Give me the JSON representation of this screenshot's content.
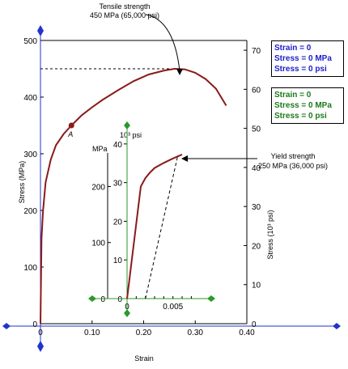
{
  "chart_data": [
    {
      "type": "line",
      "xlabel": "Strain",
      "ylabel": "Stress (MPa)",
      "ylabel_right": "Stress (10³ psi)",
      "xlim": [
        0,
        0.4
      ],
      "ylim": [
        0,
        500
      ],
      "ylim_right": [
        0,
        72.5
      ],
      "x_ticks": [
        "0",
        "0.10",
        "0.20",
        "0.30",
        "0.40"
      ],
      "y_ticks": [
        "0",
        "100",
        "200",
        "300",
        "400",
        "500"
      ],
      "y_ticks_right": [
        "0",
        "10",
        "20",
        "30",
        "40",
        "50",
        "60",
        "70"
      ],
      "series": [
        {
          "color": "#8b1a1a",
          "x": [
            0,
            0.002,
            0.005,
            0.01,
            0.02,
            0.03,
            0.045,
            0.06,
            0.08,
            0.1,
            0.12,
            0.15,
            0.18,
            0.21,
            0.24,
            0.26,
            0.28,
            0.3,
            0.32,
            0.34,
            0.36
          ],
          "y": [
            0,
            150,
            200,
            250,
            290,
            315,
            335,
            350,
            368,
            382,
            395,
            412,
            428,
            440,
            447,
            450,
            449,
            443,
            432,
            415,
            385
          ]
        }
      ],
      "annotations": {
        "point_label": "A",
        "point": [
          0.06,
          350
        ],
        "tensile_line1": "Tensile strength",
        "tensile_line2": "450 MPa (65,000 psi)",
        "tensile_value": 450
      }
    },
    {
      "type": "line",
      "xlim": [
        0,
        0.0082
      ],
      "ylim": [
        0,
        280
      ],
      "ylim_right": [
        0,
        40.6
      ],
      "y_ticks": [
        "0",
        "100",
        "200"
      ],
      "y_ticks_right": [
        "0",
        "10",
        "20",
        "30",
        "40"
      ],
      "x_ticks": [
        "0",
        "0.005"
      ],
      "y_unit_left": "MPa",
      "y_unit_right": "10³ psi",
      "series": [
        {
          "color": "#8b1a1a",
          "x": [
            0,
            0.0015,
            0.002,
            0.0025,
            0.003,
            0.004,
            0.005,
            0.006
          ],
          "y": [
            0,
            200,
            215,
            225,
            233,
            242,
            250,
            257
          ]
        }
      ],
      "offset_line": {
        "x": [
          0.002,
          0.0055
        ],
        "y": [
          0,
          253
        ]
      },
      "annotations": {
        "yield_line1": "Yield strength",
        "yield_line2": "250 MPa (36,000 psi)",
        "yield_value": 250
      }
    }
  ],
  "readouts": [
    {
      "strain": "Strain =  0",
      "stress_mpa": "Stress = 0 MPa",
      "stress_psi": "Stress = 0 psi"
    },
    {
      "strain": "Strain =  0",
      "stress_mpa": "Stress = 0 MPa",
      "stress_psi": "Stress = 0 psi"
    }
  ]
}
